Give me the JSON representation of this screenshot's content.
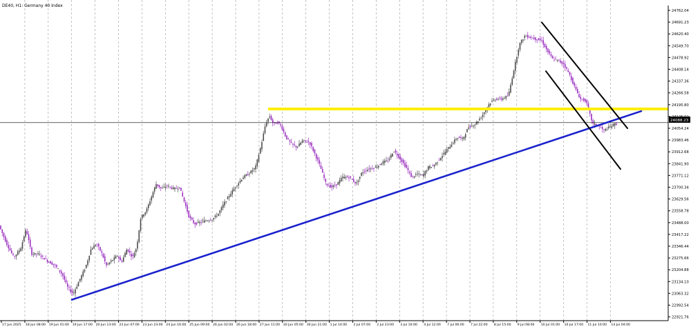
{
  "window_title": "DE40, H1:  Germany 40 Index",
  "chart_data": {
    "type": "candlestick",
    "symbol": "DE40",
    "timeframe": "H1",
    "instrument": "Germany 40 Index",
    "current_price": "24088.23",
    "ylim": [
      22950,
      24800
    ],
    "grid": "vertical dashed",
    "y_ticks": [
      "24762.04",
      "24691.23",
      "24620.40",
      "24549.70",
      "24478.92",
      "24408.14",
      "24337.36",
      "24266.58",
      "24195.80",
      "24125.02",
      "24054.24",
      "23983.46",
      "23912.68",
      "23841.90",
      "23771.12",
      "23700.34",
      "23629.56",
      "23558.78",
      "23488.00",
      "23417.22",
      "23346.44",
      "23275.66",
      "23204.88",
      "23134.10",
      "23063.32",
      "22992.54",
      "22921.76"
    ],
    "x_ticks": [
      "17 Jun 2025",
      "18 Jun 08:00",
      "19 Jun 01:00",
      "19 Jun 17:00",
      "20 Jun 13:00",
      "23 Jun 07:00",
      "23 Jun 23:00",
      "24 Jun 16:00",
      "25 Jun 09:00",
      "26 Jun 02:00",
      "26 Jun 18:00",
      "27 Jun 11:00",
      "30 Jun 05:00",
      "30 Jun 21:00",
      "1 Jul 14:00",
      "2 Jul 07:00",
      "2 Jul 23:00",
      "3 Jul 16:00",
      "4 Jul 12:00",
      "7 Jul 06:00",
      "7 Jul 22:00",
      "8 Jul 15:00",
      "9 Jul 08:00",
      "10 Jul 01:00",
      "10 Jul 17:00",
      "11 Jul 10:00",
      "14 Jul 04:00"
    ],
    "price_path": [
      [
        0,
        23480
      ],
      [
        12,
        23360
      ],
      [
        22,
        23280
      ],
      [
        32,
        23330
      ],
      [
        40,
        23450
      ],
      [
        48,
        23300
      ],
      [
        58,
        23300
      ],
      [
        70,
        23260
      ],
      [
        82,
        23230
      ],
      [
        92,
        23180
      ],
      [
        100,
        23100
      ],
      [
        108,
        23060
      ],
      [
        118,
        23150
      ],
      [
        126,
        23220
      ],
      [
        134,
        23330
      ],
      [
        142,
        23360
      ],
      [
        150,
        23300
      ],
      [
        156,
        23230
      ],
      [
        164,
        23260
      ],
      [
        172,
        23290
      ],
      [
        178,
        23250
      ],
      [
        186,
        23330
      ],
      [
        194,
        23280
      ],
      [
        200,
        23340
      ],
      [
        206,
        23520
      ],
      [
        214,
        23560
      ],
      [
        222,
        23650
      ],
      [
        228,
        23720
      ],
      [
        236,
        23690
      ],
      [
        244,
        23710
      ],
      [
        254,
        23690
      ],
      [
        262,
        23700
      ],
      [
        270,
        23600
      ],
      [
        276,
        23520
      ],
      [
        284,
        23480
      ],
      [
        292,
        23490
      ],
      [
        300,
        23500
      ],
      [
        310,
        23510
      ],
      [
        318,
        23540
      ],
      [
        326,
        23600
      ],
      [
        334,
        23650
      ],
      [
        344,
        23710
      ],
      [
        354,
        23760
      ],
      [
        362,
        23780
      ],
      [
        372,
        23820
      ],
      [
        380,
        23950
      ],
      [
        386,
        24070
      ],
      [
        392,
        24130
      ],
      [
        398,
        24080
      ],
      [
        404,
        24090
      ],
      [
        410,
        24060
      ],
      [
        416,
        24000
      ],
      [
        424,
        23960
      ],
      [
        432,
        23940
      ],
      [
        440,
        23980
      ],
      [
        450,
        23970
      ],
      [
        458,
        23900
      ],
      [
        466,
        23820
      ],
      [
        474,
        23720
      ],
      [
        482,
        23700
      ],
      [
        490,
        23720
      ],
      [
        498,
        23760
      ],
      [
        508,
        23760
      ],
      [
        518,
        23720
      ],
      [
        526,
        23790
      ],
      [
        536,
        23810
      ],
      [
        546,
        23820
      ],
      [
        556,
        23850
      ],
      [
        564,
        23860
      ],
      [
        572,
        23920
      ],
      [
        580,
        23880
      ],
      [
        590,
        23820
      ],
      [
        598,
        23760
      ],
      [
        606,
        23780
      ],
      [
        614,
        23770
      ],
      [
        622,
        23820
      ],
      [
        630,
        23830
      ],
      [
        640,
        23880
      ],
      [
        648,
        23920
      ],
      [
        656,
        23960
      ],
      [
        664,
        24000
      ],
      [
        672,
        23990
      ],
      [
        680,
        24060
      ],
      [
        690,
        24080
      ],
      [
        700,
        24130
      ],
      [
        710,
        24200
      ],
      [
        718,
        24230
      ],
      [
        728,
        24230
      ],
      [
        738,
        24250
      ],
      [
        746,
        24410
      ],
      [
        754,
        24560
      ],
      [
        762,
        24610
      ],
      [
        770,
        24600
      ],
      [
        778,
        24590
      ],
      [
        786,
        24580
      ],
      [
        794,
        24520
      ],
      [
        802,
        24470
      ],
      [
        810,
        24460
      ],
      [
        818,
        24440
      ],
      [
        826,
        24380
      ],
      [
        834,
        24300
      ],
      [
        842,
        24230
      ],
      [
        850,
        24220
      ],
      [
        860,
        24080
      ],
      [
        868,
        24070
      ],
      [
        876,
        24040
      ],
      [
        884,
        24060
      ],
      [
        892,
        24080
      ]
    ],
    "annotations": {
      "horizontal_level": 24170,
      "rising_trendline": {
        "from": [
          104,
          23025
        ],
        "to": [
          928,
          24157
        ]
      },
      "descending_channel_upper": {
        "from": [
          784,
          24690
        ],
        "to": [
          908,
          24054
        ]
      },
      "descending_channel_lower": {
        "from": [
          790,
          24397
        ],
        "to": [
          898,
          23809
        ]
      }
    }
  },
  "colors": {
    "bull": "#4b4b4b",
    "bear": "#9b2fbf",
    "grid": "#999999",
    "yellow_level": "#ffee00",
    "trendline": "#1a22cc",
    "channel": "#000000",
    "price_line": "#000000"
  }
}
